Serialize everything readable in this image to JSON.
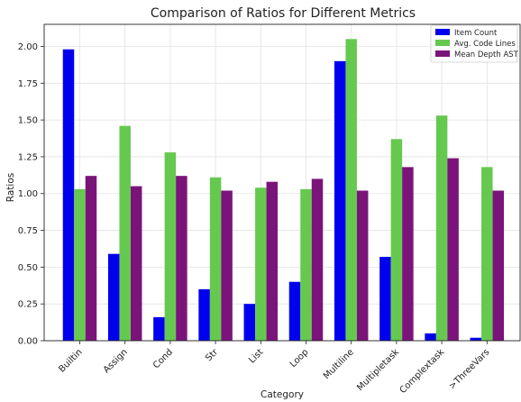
{
  "chart_data": {
    "type": "bar",
    "title": "Comparison of Ratios for Different Metrics",
    "xlabel": "Category",
    "ylabel": "Ratios",
    "ylim": [
      0,
      2.15
    ],
    "yticks": [
      "0.00",
      "0.25",
      "0.50",
      "0.75",
      "1.00",
      "1.25",
      "1.50",
      "1.75",
      "2.00"
    ],
    "grid": true,
    "legend_position": "top-right",
    "categories": [
      "Builtin",
      "Assign",
      "Cond",
      "Str",
      "List",
      "Loop",
      "Multiline",
      "Multipletask",
      "Complextask",
      ">ThreeVars"
    ],
    "series": [
      {
        "name": "Item Count",
        "color": "#0000ee",
        "values": [
          1.98,
          0.59,
          0.16,
          0.35,
          0.25,
          0.4,
          1.9,
          0.57,
          0.05,
          0.02
        ]
      },
      {
        "name": "Avg. Code Lines",
        "color": "#66c94f",
        "values": [
          1.03,
          1.46,
          1.28,
          1.11,
          1.04,
          1.03,
          2.05,
          1.37,
          1.53,
          1.18
        ]
      },
      {
        "name": "Mean Depth AST",
        "color": "#7a147a",
        "values": [
          1.12,
          1.05,
          1.12,
          1.02,
          1.08,
          1.1,
          1.02,
          1.18,
          1.24,
          1.02
        ]
      }
    ]
  }
}
